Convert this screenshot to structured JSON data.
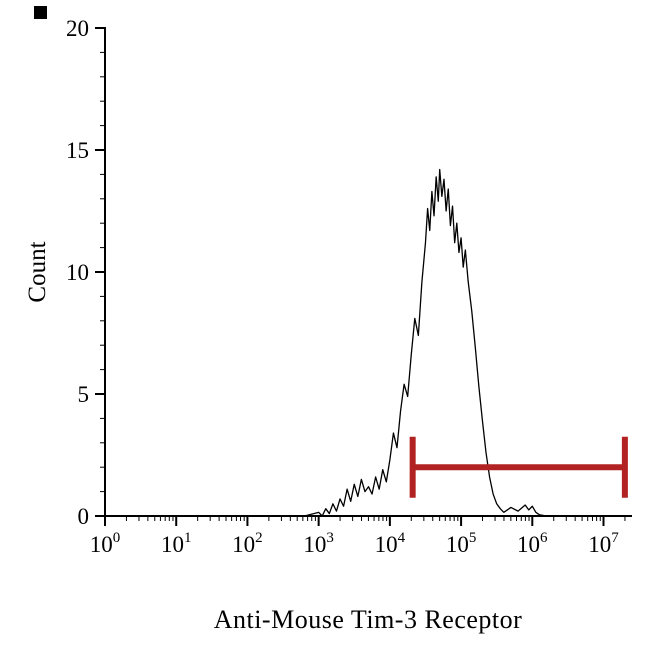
{
  "chart_data": {
    "type": "line",
    "subtype": "flow-cytometry-histogram",
    "title": "",
    "xlabel": "Anti-Mouse Tim-3 Receptor",
    "ylabel": "Count",
    "x_scale": "log10",
    "x_base": "10",
    "xticks_exp": [
      0,
      1,
      2,
      3,
      4,
      5,
      6,
      7
    ],
    "xlog_range": [
      0,
      7.4
    ],
    "ylim": [
      0,
      20
    ],
    "yticks": [
      0,
      5,
      10,
      15,
      20
    ],
    "y_minor_step": 1,
    "grid": false,
    "legend": "none",
    "axis_color": "#000000",
    "series": [
      {
        "color": "#000000",
        "points": [
          [
            0,
            0
          ],
          [
            1,
            0
          ],
          [
            2,
            0
          ],
          [
            2.8,
            0
          ],
          [
            3.0,
            0.15
          ],
          [
            3.05,
            0
          ],
          [
            3.1,
            0.3
          ],
          [
            3.15,
            0.1
          ],
          [
            3.2,
            0.5
          ],
          [
            3.25,
            0.2
          ],
          [
            3.3,
            0.7
          ],
          [
            3.35,
            0.4
          ],
          [
            3.4,
            1.1
          ],
          [
            3.45,
            0.6
          ],
          [
            3.5,
            1.3
          ],
          [
            3.55,
            0.8
          ],
          [
            3.6,
            1.5
          ],
          [
            3.65,
            1.0
          ],
          [
            3.7,
            1.2
          ],
          [
            3.75,
            0.9
          ],
          [
            3.8,
            1.6
          ],
          [
            3.85,
            1.1
          ],
          [
            3.9,
            1.9
          ],
          [
            3.95,
            1.4
          ],
          [
            4.0,
            2.3
          ],
          [
            4.05,
            3.4
          ],
          [
            4.1,
            2.8
          ],
          [
            4.15,
            4.3
          ],
          [
            4.2,
            5.4
          ],
          [
            4.25,
            4.9
          ],
          [
            4.3,
            6.6
          ],
          [
            4.35,
            8.1
          ],
          [
            4.4,
            7.4
          ],
          [
            4.45,
            9.6
          ],
          [
            4.5,
            11.2
          ],
          [
            4.53,
            12.6
          ],
          [
            4.56,
            11.7
          ],
          [
            4.59,
            13.3
          ],
          [
            4.62,
            12.3
          ],
          [
            4.65,
            13.9
          ],
          [
            4.68,
            12.9
          ],
          [
            4.7,
            14.2
          ],
          [
            4.73,
            13.1
          ],
          [
            4.76,
            13.8
          ],
          [
            4.79,
            12.5
          ],
          [
            4.82,
            13.4
          ],
          [
            4.85,
            11.9
          ],
          [
            4.88,
            12.7
          ],
          [
            4.91,
            11.2
          ],
          [
            4.94,
            12.0
          ],
          [
            4.97,
            10.8
          ],
          [
            5.0,
            11.4
          ],
          [
            5.03,
            10.2
          ],
          [
            5.06,
            10.9
          ],
          [
            5.1,
            9.6
          ],
          [
            5.15,
            8.4
          ],
          [
            5.2,
            6.9
          ],
          [
            5.25,
            5.3
          ],
          [
            5.3,
            3.9
          ],
          [
            5.35,
            2.6
          ],
          [
            5.4,
            1.6
          ],
          [
            5.45,
            0.9
          ],
          [
            5.5,
            0.5
          ],
          [
            5.55,
            0.3
          ],
          [
            5.6,
            0.15
          ],
          [
            5.7,
            0.35
          ],
          [
            5.8,
            0.2
          ],
          [
            5.9,
            0.45
          ],
          [
            5.95,
            0.25
          ],
          [
            6.0,
            0.4
          ],
          [
            6.05,
            0.15
          ],
          [
            6.1,
            0.05
          ],
          [
            6.2,
            0
          ],
          [
            6.5,
            0
          ],
          [
            7.0,
            0
          ],
          [
            7.35,
            0
          ]
        ]
      }
    ],
    "gate": {
      "y": 2.0,
      "cap_half": 1.25,
      "from_log": 4.32,
      "to_log": 7.3,
      "color": "#b22222"
    }
  }
}
